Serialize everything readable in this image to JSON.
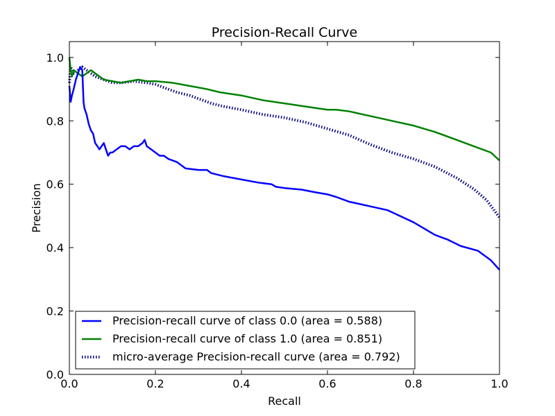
{
  "chart_data": {
    "type": "line",
    "title": "Precision-Recall Curve",
    "xlabel": "Recall",
    "ylabel": "Precision",
    "xlim": [
      0.0,
      1.0
    ],
    "ylim": [
      0.0,
      1.05
    ],
    "xticks": [
      0.0,
      0.2,
      0.4,
      0.6,
      0.8,
      1.0
    ],
    "yticks": [
      0.0,
      0.2,
      0.4,
      0.6,
      0.8,
      1.0
    ],
    "xtick_labels": [
      "0.0",
      "0.2",
      "0.4",
      "0.6",
      "0.8",
      "1.0"
    ],
    "ytick_labels": [
      "0.0",
      "0.2",
      "0.4",
      "0.6",
      "0.8",
      "1.0"
    ],
    "grid": false,
    "legend_position": "lower-left",
    "series": [
      {
        "name": "Precision-recall curve of class 0.0 (area = 0.588)",
        "color": "#0000ff",
        "style": "solid",
        "x": [
          0.0,
          0.003,
          0.006,
          0.01,
          0.015,
          0.02,
          0.025,
          0.03,
          0.033,
          0.035,
          0.04,
          0.045,
          0.05,
          0.055,
          0.06,
          0.065,
          0.07,
          0.075,
          0.08,
          0.085,
          0.09,
          0.095,
          0.1,
          0.11,
          0.12,
          0.13,
          0.14,
          0.15,
          0.16,
          0.17,
          0.175,
          0.18,
          0.19,
          0.2,
          0.21,
          0.22,
          0.23,
          0.25,
          0.26,
          0.27,
          0.3,
          0.32,
          0.33,
          0.36,
          0.4,
          0.44,
          0.47,
          0.48,
          0.5,
          0.54,
          0.57,
          0.6,
          0.62,
          0.65,
          0.7,
          0.72,
          0.74,
          0.8,
          0.85,
          0.88,
          0.91,
          0.95,
          0.98,
          1.0
        ],
        "y": [
          0.91,
          0.86,
          0.88,
          0.9,
          0.93,
          0.95,
          0.97,
          0.96,
          0.86,
          0.84,
          0.82,
          0.79,
          0.77,
          0.76,
          0.73,
          0.72,
          0.71,
          0.72,
          0.73,
          0.71,
          0.69,
          0.7,
          0.7,
          0.71,
          0.72,
          0.72,
          0.71,
          0.72,
          0.72,
          0.73,
          0.74,
          0.72,
          0.71,
          0.7,
          0.69,
          0.69,
          0.68,
          0.67,
          0.66,
          0.65,
          0.645,
          0.645,
          0.635,
          0.625,
          0.615,
          0.605,
          0.6,
          0.592,
          0.588,
          0.583,
          0.575,
          0.568,
          0.56,
          0.545,
          0.53,
          0.524,
          0.518,
          0.48,
          0.44,
          0.425,
          0.405,
          0.39,
          0.36,
          0.33
        ]
      },
      {
        "name": "Precision-recall curve of class 1.0 (area = 0.851)",
        "color": "#008000",
        "style": "solid",
        "x": [
          0.0,
          0.003,
          0.006,
          0.01,
          0.02,
          0.03,
          0.04,
          0.05,
          0.06,
          0.07,
          0.08,
          0.1,
          0.12,
          0.14,
          0.16,
          0.18,
          0.2,
          0.24,
          0.28,
          0.3,
          0.32,
          0.35,
          0.4,
          0.45,
          0.5,
          0.55,
          0.6,
          0.62,
          0.65,
          0.7,
          0.75,
          0.8,
          0.85,
          0.9,
          0.95,
          0.98,
          1.0
        ],
        "y": [
          1.0,
          0.96,
          0.94,
          0.96,
          0.95,
          0.94,
          0.95,
          0.96,
          0.95,
          0.94,
          0.93,
          0.925,
          0.92,
          0.925,
          0.93,
          0.925,
          0.925,
          0.92,
          0.91,
          0.905,
          0.9,
          0.89,
          0.88,
          0.865,
          0.855,
          0.845,
          0.835,
          0.835,
          0.83,
          0.815,
          0.8,
          0.785,
          0.765,
          0.74,
          0.715,
          0.7,
          0.675
        ]
      },
      {
        "name": "micro-average Precision-recall curve (area = 0.792)",
        "color": "#000080",
        "style": "dotted",
        "x": [
          0.0,
          0.003,
          0.006,
          0.01,
          0.02,
          0.03,
          0.04,
          0.05,
          0.06,
          0.08,
          0.1,
          0.12,
          0.15,
          0.18,
          0.2,
          0.22,
          0.25,
          0.28,
          0.3,
          0.33,
          0.36,
          0.4,
          0.45,
          0.5,
          0.55,
          0.6,
          0.65,
          0.7,
          0.75,
          0.8,
          0.85,
          0.9,
          0.94,
          0.97,
          1.0
        ],
        "y": [
          0.92,
          0.97,
          0.96,
          0.95,
          0.96,
          0.97,
          0.96,
          0.95,
          0.94,
          0.93,
          0.92,
          0.92,
          0.925,
          0.92,
          0.915,
          0.905,
          0.89,
          0.88,
          0.87,
          0.855,
          0.845,
          0.835,
          0.82,
          0.81,
          0.795,
          0.775,
          0.755,
          0.725,
          0.7,
          0.68,
          0.655,
          0.62,
          0.585,
          0.55,
          0.495
        ]
      }
    ]
  }
}
